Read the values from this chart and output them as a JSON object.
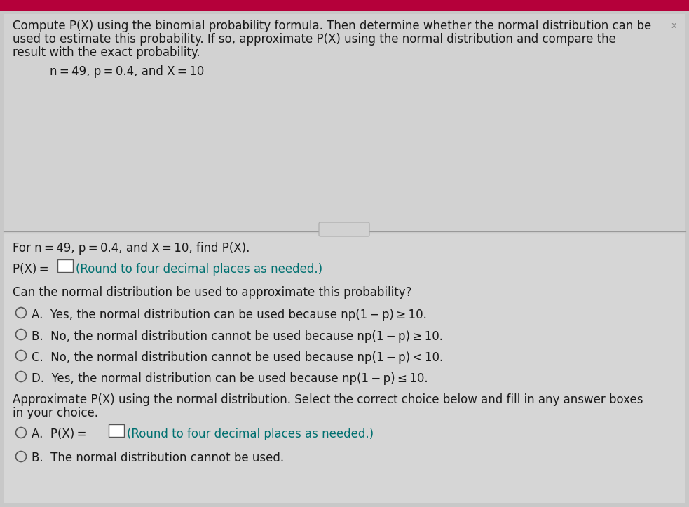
{
  "bg_color": "#c8c8c8",
  "upper_panel_color": "#d0d0d0",
  "lower_panel_color": "#d4d4d4",
  "top_bar_color": "#b5003a",
  "text_color": "#1a1a1a",
  "teal_color": "#007070",
  "circle_color": "#555555",
  "divider_color": "#aaaaaa",
  "white": "#ffffff",
  "title_text_line1": "Compute P(X) using the binomial probability formula. Then determine whether the normal distribution can be",
  "title_text_line2": "used to estimate this probability. If so, approximate P(X) using the normal distribution and compare the",
  "title_text_line3": "result with the exact probability.",
  "params_text": "    n = 49, p = 0.4, and X = 10",
  "section1_label": "For n = 49, p = 0.4, and X = 10, find P(X).",
  "section1_px": "P(X) =",
  "section1_note": "(Round to four decimal places as needed.)",
  "section2_label": "Can the normal distribution be used to approximate this probability?",
  "option_A": "A.  Yes, the normal distribution can be used because np(1 − p) ≥ 10.",
  "option_B": "B.  No, the normal distribution cannot be used because np(1 − p) ≥ 10.",
  "option_C": "C.  No, the normal distribution cannot be used because np(1 − p) < 10.",
  "option_D": "D.  Yes, the normal distribution can be used because np(1 − p) ≤ 10.",
  "section3_line1": "Approximate P(X) using the normal distribution. Select the correct choice below and fill in any answer boxes",
  "section3_line2": "in your choice.",
  "optA2_prefix": "A.  P(X) =",
  "optA2_note": "(Round to four decimal places as needed.)",
  "optB2_label": "B.  The normal distribution cannot be used.",
  "fs": 12.0,
  "fs_small": 10.0
}
